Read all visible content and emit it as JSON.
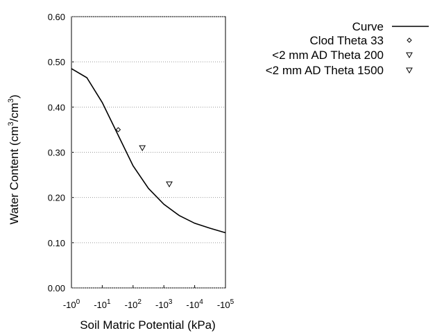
{
  "chart_data": {
    "type": "line",
    "xlabel": "Soil Matric Potential (kPa)",
    "ylabel_parts": [
      {
        "text": "Water Content (cm"
      },
      {
        "sup": "3"
      },
      {
        "text": "/cm"
      },
      {
        "sup": "3"
      },
      {
        "text": ")"
      }
    ],
    "xscale": "log",
    "xlim": [
      -1,
      -100000
    ],
    "xticks": [
      {
        "value": -1,
        "label": "-10",
        "exponent": "0"
      },
      {
        "value": -10,
        "label": "-10",
        "exponent": "1"
      },
      {
        "value": -100,
        "label": "-10",
        "exponent": "2"
      },
      {
        "value": -1000,
        "label": "-10",
        "exponent": "3"
      },
      {
        "value": -10000,
        "label": "-10",
        "exponent": "4"
      },
      {
        "value": -100000,
        "label": "-10",
        "exponent": "5"
      }
    ],
    "ylim": [
      0,
      0.6
    ],
    "yticks": [
      {
        "value": 0,
        "label": "0.00"
      },
      {
        "value": 0.1,
        "label": "0.10"
      },
      {
        "value": 0.2,
        "label": "0.20"
      },
      {
        "value": 0.3,
        "label": "0.30"
      },
      {
        "value": 0.4,
        "label": "0.40"
      },
      {
        "value": 0.5,
        "label": "0.50"
      },
      {
        "value": 0.6,
        "label": "0.60"
      }
    ],
    "grid": true,
    "legend": "top-right",
    "series": [
      {
        "name": "Curve",
        "color": "#000000",
        "marker": "none",
        "x": [
          -1,
          -3.16,
          -10,
          -31.6,
          -100,
          -316,
          -1000,
          -3162,
          -10000,
          -31623,
          -100000
        ],
        "values": [
          0.485,
          0.465,
          0.41,
          0.34,
          0.27,
          0.22,
          0.185,
          0.16,
          0.143,
          0.132,
          0.122
        ]
      },
      {
        "name": "Clod Theta 33",
        "color": "#000000",
        "marker": "diamond",
        "x": [
          -33
        ],
        "values": [
          0.35
        ]
      },
      {
        "name": "<2 mm AD Theta 200",
        "color": "#000000",
        "marker": "triangle-down",
        "x": [
          -200
        ],
        "values": [
          0.31
        ]
      },
      {
        "name": "<2 mm AD Theta 1500",
        "color": "#000000",
        "marker": "triangle-down",
        "x": [
          -1500
        ],
        "values": [
          0.23
        ]
      }
    ]
  }
}
